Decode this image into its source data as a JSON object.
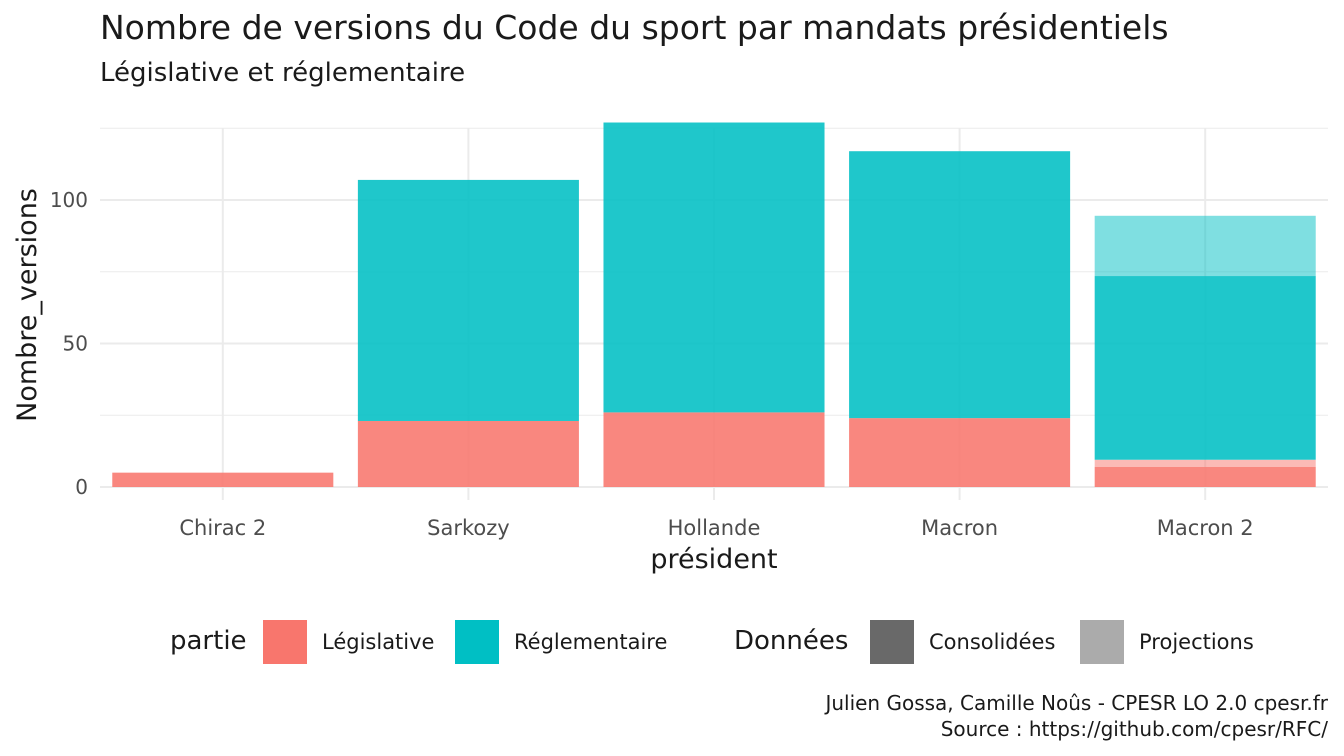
{
  "title": "Nombre de versions du Code du sport par mandats présidentiels",
  "subtitle": "Législative et réglementaire",
  "caption": {
    "line1": "Julien Gossa, Camille Noûs - CPESR LO 2.0 cpesr.fr",
    "line2": "Source : https://github.com/cpesr/RFC/"
  },
  "legend": {
    "partie_title": "partie",
    "partie": [
      {
        "label": "Législative",
        "color": "#F8766D"
      },
      {
        "label": "Réglementaire",
        "color": "#00BFC4"
      }
    ],
    "donnees_title": "Données",
    "donnees": [
      {
        "label": "Consolidées",
        "color": "#696969"
      },
      {
        "label": "Projections",
        "color": "#ABABAB"
      }
    ]
  },
  "chart_data": {
    "type": "bar",
    "stacked": true,
    "xlabel": "président",
    "ylabel": "Nombre_versions",
    "categories": [
      "Chirac 2",
      "Sarkozy",
      "Hollande",
      "Macron",
      "Macron 2"
    ],
    "ylim": [
      0,
      125
    ],
    "yticks": [
      0,
      50,
      100
    ],
    "grid": true,
    "legend_position": "bottom",
    "series": [
      {
        "name": "Législative",
        "donnees": "Consolidées",
        "color": "#F8766D",
        "values": [
          5,
          23,
          26,
          24,
          7
        ]
      },
      {
        "name": "Législative",
        "donnees": "Projections",
        "color": "#F8766D",
        "values": [
          0,
          0,
          0,
          0,
          2.5
        ]
      },
      {
        "name": "Réglementaire",
        "donnees": "Consolidées",
        "color": "#00BFC4",
        "values": [
          0,
          84,
          101,
          93,
          64
        ]
      },
      {
        "name": "Réglementaire",
        "donnees": "Projections",
        "color": "#00BFC4",
        "values": [
          0,
          0,
          0,
          0,
          21
        ]
      }
    ]
  }
}
